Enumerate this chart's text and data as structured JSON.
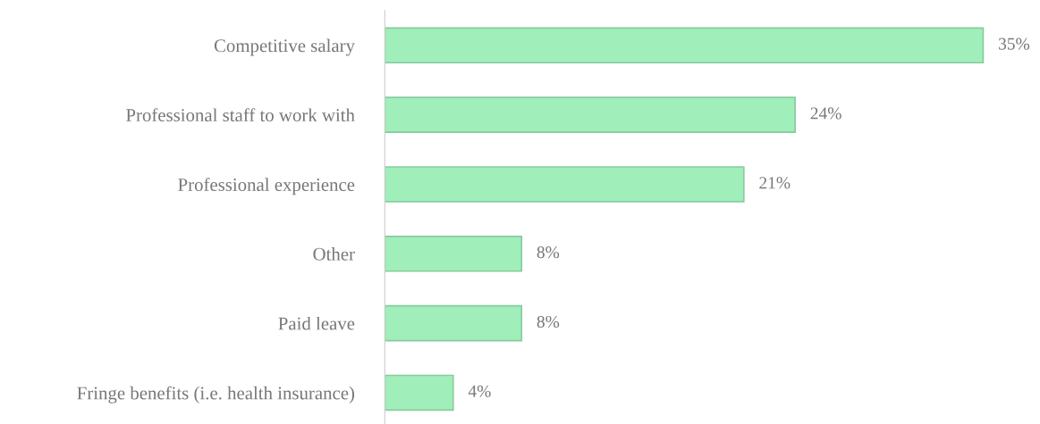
{
  "chart_data": {
    "type": "bar",
    "orientation": "horizontal",
    "categories": [
      "Competitive salary",
      "Professional staff to work with",
      "Professional experience",
      "Other",
      "Paid leave",
      "Fringe benefits (i.e. health insurance)"
    ],
    "values": [
      35,
      24,
      21,
      8,
      8,
      4
    ],
    "color": "#a0efbb",
    "value_labels": [
      "35%",
      "24%",
      "21%",
      "8%",
      "8%",
      "4%"
    ],
    "grid": false,
    "legend": false
  }
}
